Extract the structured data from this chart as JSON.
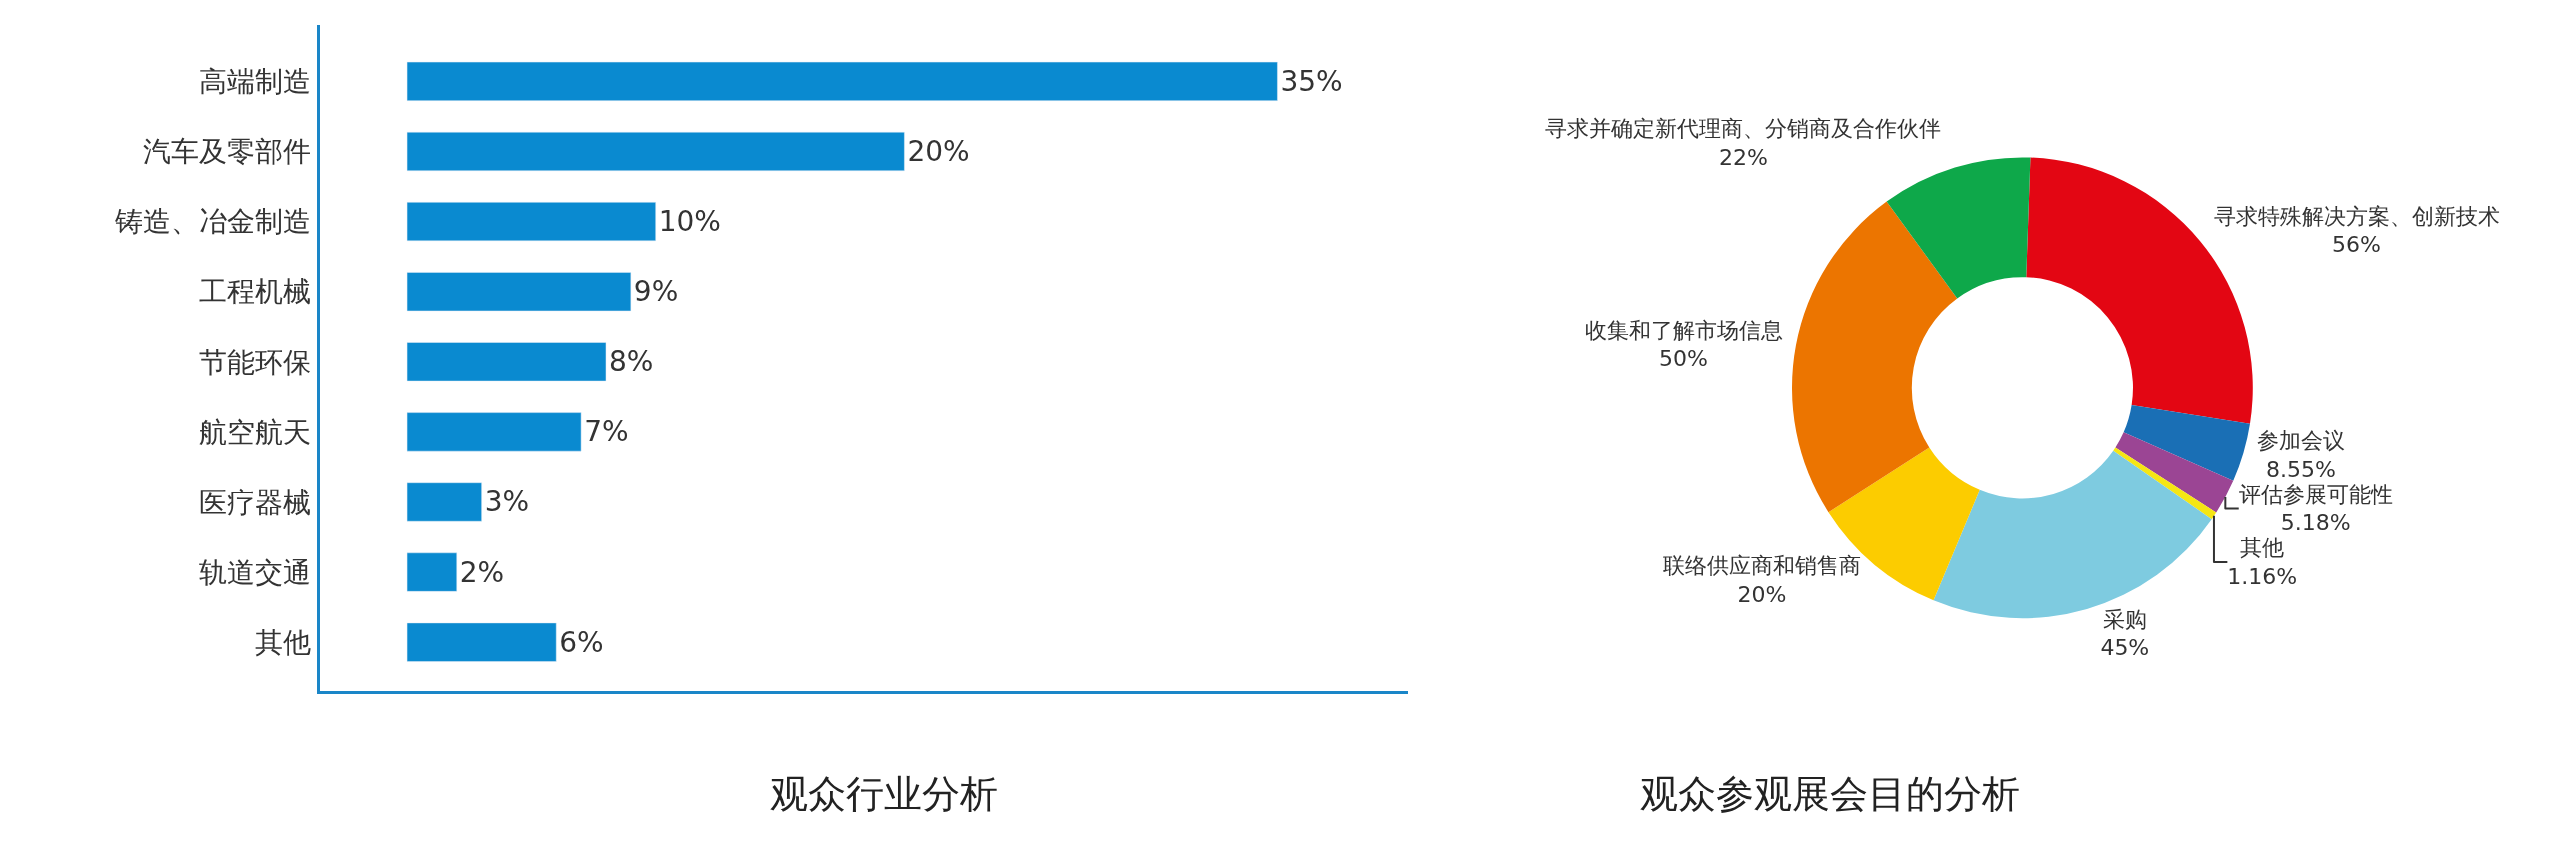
{
  "chart_data": [
    {
      "type": "bar",
      "orientation": "horizontal",
      "title": "观众行业分析",
      "categories": [
        "高端制造",
        "汽车及零部件",
        "铸造、冶金制造",
        "工程机械",
        "节能环保",
        "航空航天",
        "医疗器械",
        "轨道交通",
        "其他"
      ],
      "values": [
        35,
        20,
        10,
        9,
        8,
        7,
        3,
        2,
        6
      ],
      "value_labels": [
        "35%",
        "20%",
        "10%",
        "9%",
        "8%",
        "7%",
        "3%",
        "2%",
        "6%"
      ],
      "color": "#0a8ad0",
      "tick_labels": "y"
    },
    {
      "type": "donut",
      "title": "观众参观展会目的分析",
      "categories": [
        "寻求特殊解决方案、创新技术",
        "参加会议",
        "评估参展可能性",
        "其他",
        "采购",
        "联络供应商和销售商",
        "收集和了解市场信息",
        "寻求并确定新代理商、分销商及合作伙伴"
      ],
      "values": [
        56,
        8.55,
        5.18,
        1.16,
        45,
        20,
        50,
        22
      ],
      "value_labels": [
        "56%",
        "8.55%",
        "5.18%",
        "1.16%",
        "45%",
        "20%",
        "50%",
        "22%"
      ],
      "colors": [
        "#e30613",
        "#1a6fb5",
        "#9b4594",
        "#f5e614",
        "#7ecbe0",
        "#fccc00",
        "#ec7500",
        "#0ea84a"
      ]
    }
  ]
}
